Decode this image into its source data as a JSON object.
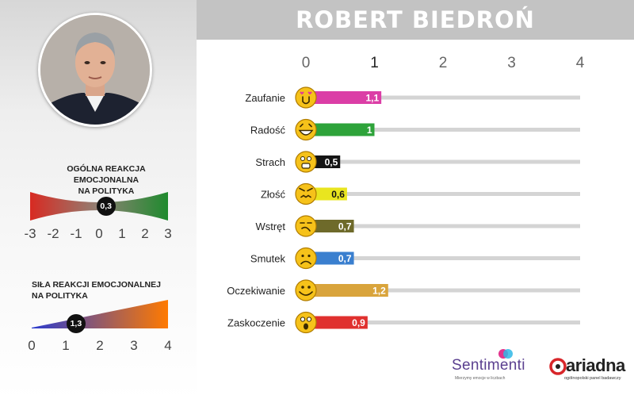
{
  "header": {
    "title": "ROBERT BIEDROŃ"
  },
  "left_panel": {
    "reaction": {
      "title_lines": [
        "OGÓLNA REAKCJA EMOCJONALNA",
        "NA POLITYKA"
      ],
      "value": 0.3,
      "value_label": "0,3",
      "scale_labels": [
        "-3",
        "-2",
        "-1",
        "0",
        "1",
        "2",
        "3"
      ],
      "range": [
        -3,
        3
      ],
      "colors": {
        "negative": "#d82a22",
        "neutral": "#8f8275",
        "positive": "#1f8a2e"
      }
    },
    "strength": {
      "title_lines": [
        "SIŁA REAKCJI EMOCJONALNEJ",
        "NA POLITYKA"
      ],
      "value": 1.3,
      "value_label": "1,3",
      "scale_labels": [
        "0",
        "1",
        "2",
        "3",
        "4"
      ],
      "range": [
        0,
        4
      ],
      "colors": {
        "low": "#2a3bd0",
        "high": "#ff7a00"
      }
    }
  },
  "chart_data": {
    "type": "bar",
    "orientation": "horizontal",
    "categories": [
      "Zaufanie",
      "Radość",
      "Strach",
      "Złość",
      "Wstręt",
      "Smutek",
      "Oczekiwanie",
      "Zaskoczenie"
    ],
    "values": [
      1.1,
      1,
      0.5,
      0.6,
      0.7,
      0.7,
      1.2,
      0.9
    ],
    "value_labels": [
      "1,1",
      "1",
      "0,5",
      "0,6",
      "0,7",
      "0,7",
      "1,2",
      "0,9"
    ],
    "colors": [
      "#db3ea6",
      "#2ea33a",
      "#151515",
      "#e9e51f",
      "#6e6a2a",
      "#3a7fcf",
      "#d9a43c",
      "#e0302e"
    ],
    "label_colors": [
      "#ffffff",
      "#ffffff",
      "#ffffff",
      "#111111",
      "#ffffff",
      "#ffffff",
      "#ffffff",
      "#ffffff"
    ],
    "icons": [
      "love-emoji-icon",
      "laughing-emoji-icon",
      "scared-emoji-icon",
      "angry-emoji-icon",
      "disgusted-emoji-icon",
      "sad-emoji-icon",
      "expectant-emoji-icon",
      "surprised-emoji-icon"
    ],
    "axis_ticks": [
      0,
      1,
      2,
      3,
      4
    ],
    "xlim": [
      0,
      4
    ],
    "track_color": "#d4d4d4",
    "title": "ROBERT BIEDROŃ"
  },
  "brands": {
    "sentimenti": {
      "name": "Sentimenti",
      "tagline": "Mierzymy emocje w liczbach"
    },
    "ariadna": {
      "name": "ariadna",
      "tagline": "ogólnopolski panel badawczy"
    }
  }
}
